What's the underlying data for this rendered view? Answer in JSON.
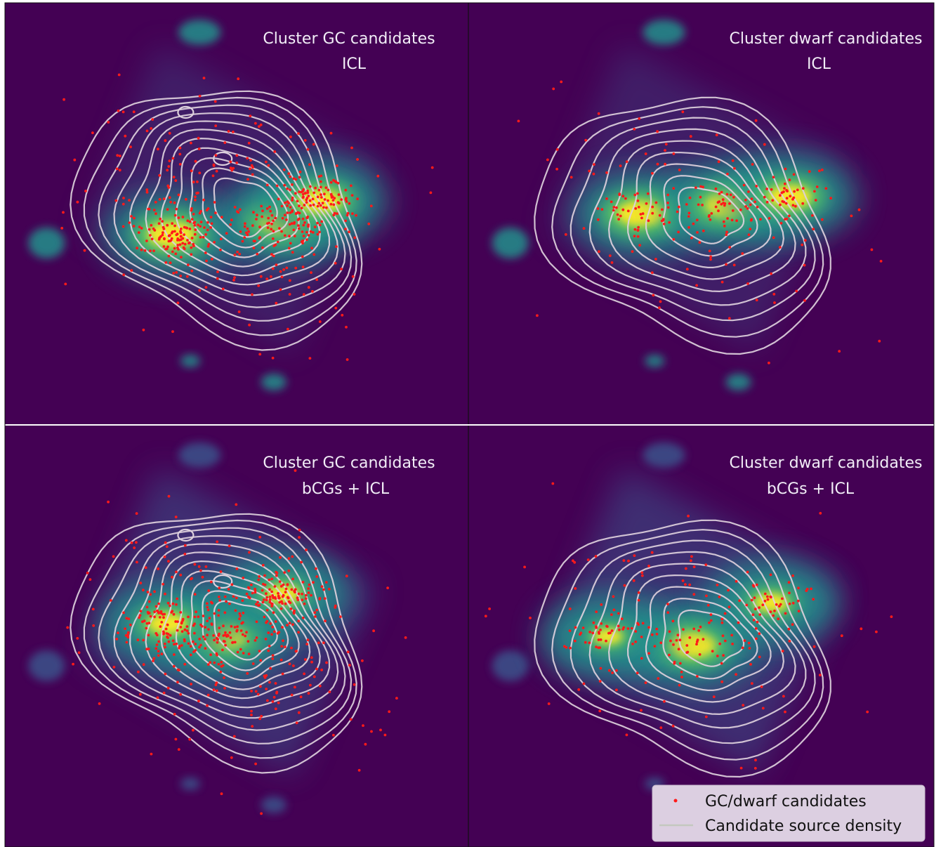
{
  "colors": {
    "background": "#440154",
    "colormap": [
      "#440154",
      "#3b528b",
      "#21918c",
      "#5ec962",
      "#fde725"
    ],
    "candidate_marker": "#ff1a1a",
    "contour": "#ddd0dc",
    "legend_bg": "#dccfe1"
  },
  "legend": {
    "items": [
      {
        "label": "GC/dwarf candidates",
        "kind": "marker",
        "icon": "red-dot"
      },
      {
        "label": "Candidate source density",
        "kind": "line",
        "icon": "contour-line"
      }
    ]
  },
  "chart_data": [
    {
      "type": "heatmap",
      "panel": "top-left",
      "title_lines": [
        "Cluster GC candidates",
        "ICL"
      ],
      "axes": "off",
      "background_map": "ICL",
      "candidate_population": "GC",
      "density_peaks": [
        {
          "x": 0.36,
          "y": 0.55,
          "weight": 1.0
        },
        {
          "x": 0.6,
          "y": 0.52,
          "weight": 1.0
        },
        {
          "x": 0.68,
          "y": 0.47,
          "weight": 0.9
        }
      ],
      "contour_levels": 11,
      "legend": "none"
    },
    {
      "type": "heatmap",
      "panel": "top-right",
      "title_lines": [
        "Cluster dwarf candidates",
        "ICL"
      ],
      "axes": "off",
      "background_map": "ICL",
      "candidate_population": "dwarf",
      "density_peaks": [
        {
          "x": 0.37,
          "y": 0.5,
          "weight": 1.0
        },
        {
          "x": 0.56,
          "y": 0.48,
          "weight": 1.0
        },
        {
          "x": 0.69,
          "y": 0.46,
          "weight": 0.9
        }
      ],
      "contour_levels": 9,
      "legend": "none"
    },
    {
      "type": "heatmap",
      "panel": "bottom-left",
      "title_lines": [
        "Cluster GC candidates",
        "bCGs + ICL"
      ],
      "axes": "off",
      "background_map": "bCGs + ICL",
      "candidate_population": "GC",
      "density_peaks": [
        {
          "x": 0.47,
          "y": 0.5,
          "weight": 1.0
        },
        {
          "x": 0.35,
          "y": 0.47,
          "weight": 0.8
        },
        {
          "x": 0.6,
          "y": 0.4,
          "weight": 0.7
        }
      ],
      "contour_levels": 11,
      "legend": "none"
    },
    {
      "type": "heatmap",
      "panel": "bottom-right",
      "title_lines": [
        "Cluster dwarf candidates",
        "bCGs + ICL"
      ],
      "axes": "off",
      "background_map": "bCGs + ICL",
      "candidate_population": "dwarf",
      "density_peaks": [
        {
          "x": 0.48,
          "y": 0.52,
          "weight": 1.0
        },
        {
          "x": 0.65,
          "y": 0.42,
          "weight": 0.7
        },
        {
          "x": 0.3,
          "y": 0.5,
          "weight": 0.6
        }
      ],
      "contour_levels": 9,
      "legend": "lower-right"
    }
  ]
}
